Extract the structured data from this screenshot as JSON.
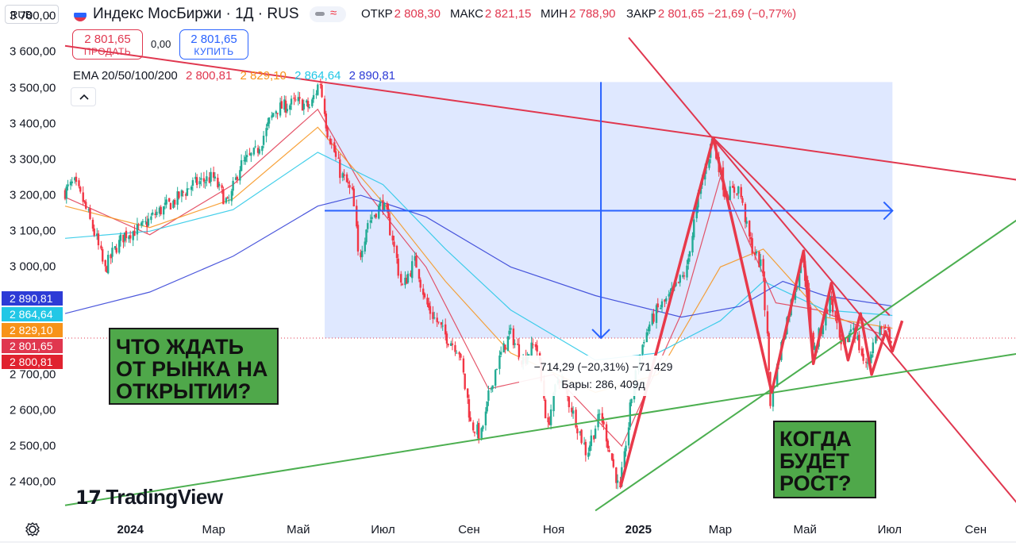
{
  "header": {
    "currency": "RUB",
    "title": "Индекс МосБиржи · 1Д · RUS",
    "ohlc": [
      {
        "key": "ОТКР",
        "value": "2 808,30"
      },
      {
        "key": "МАКС",
        "value": "2 821,15"
      },
      {
        "key": "МИН",
        "value": "2 788,90"
      },
      {
        "key": "ЗАКР",
        "value": "2 801,65 −21,69 (−0,77%)"
      }
    ],
    "sell_price": "2 801,65",
    "sell_label": "ПРОДАТЬ",
    "spread": "0,00",
    "buy_price": "2 801,65",
    "buy_label": "КУПИТЬ",
    "flag_colors": [
      "#ffffff",
      "#2962ff",
      "#e0374f"
    ]
  },
  "ema": {
    "label": "EMA 20/50/100/200",
    "values": [
      "2 800,81",
      "2 829,10",
      "2 864,64",
      "2 890,81"
    ],
    "colors": [
      "#e0374f",
      "#f7931a",
      "#22c7e6",
      "#2d3bd6"
    ]
  },
  "price_tags": [
    {
      "text": "2 890,81",
      "value": 2890.81,
      "color": "#2d3bd6"
    },
    {
      "text": "2 864,64",
      "value": 2864.64,
      "color": "#22c7e6"
    },
    {
      "text": "2 829,10",
      "value": 2829.1,
      "color": "#f7931a"
    },
    {
      "text": "2 801,65",
      "value": 2801.65,
      "color": "#e0374f"
    },
    {
      "text": "2 800,81",
      "value": 2800.81,
      "color": "#e0222f"
    }
  ],
  "callouts": {
    "left": [
      "ЧТО ЖДАТЬ",
      "ОТ РЫНКА НА",
      "ОТКРЫТИИ?"
    ],
    "right": [
      "КОГДА",
      "БУДЕТ",
      "РОСТ?"
    ]
  },
  "measure": {
    "line1": "−714,29 (−20,31%) −71 429",
    "line2": "Бары: 286, 409д"
  },
  "logo": "TradingView",
  "chart_data": {
    "type": "candlestick",
    "title": "Индекс МосБиржи · 1Д · RUS",
    "y_ticks": [
      "3 700,00",
      "3 600,00",
      "3 500,00",
      "3 400,00",
      "3 300,00",
      "3 200,00",
      "3 100,00",
      "3 000,00",
      "2 700,00",
      "2 600,00",
      "2 500,00",
      "2 400,00"
    ],
    "y_tick_values": [
      3700,
      3600,
      3500,
      3400,
      3300,
      3200,
      3100,
      3000,
      2700,
      2600,
      2500,
      2400
    ],
    "ylim": [
      2310,
      3745
    ],
    "x_ticks": [
      {
        "label": "2024",
        "date": "2024-01-01",
        "bold": true
      },
      {
        "label": "Мар",
        "date": "2024-03-01"
      },
      {
        "label": "Май",
        "date": "2024-05-01"
      },
      {
        "label": "Июл",
        "date": "2024-07-01"
      },
      {
        "label": "Сен",
        "date": "2024-09-01"
      },
      {
        "label": "Ноя",
        "date": "2024-11-01"
      },
      {
        "label": "2025",
        "date": "2025-01-01",
        "bold": true
      },
      {
        "label": "Мар",
        "date": "2025-03-01"
      },
      {
        "label": "Май",
        "date": "2025-05-01"
      },
      {
        "label": "Июл",
        "date": "2025-07-01"
      },
      {
        "label": "Сен",
        "date": "2025-09-01"
      }
    ],
    "xlim": [
      "2023-11-15",
      "2025-09-30"
    ],
    "last_close": 2801.65,
    "price_path": [
      [
        "2023-11-15",
        3210
      ],
      [
        "2023-11-22",
        3235
      ],
      [
        "2023-12-01",
        3160
      ],
      [
        "2023-12-08",
        3080
      ],
      [
        "2023-12-14",
        2990
      ],
      [
        "2023-12-20",
        3040
      ],
      [
        "2023-12-28",
        3090
      ],
      [
        "2024-01-10",
        3110
      ],
      [
        "2024-01-20",
        3150
      ],
      [
        "2024-02-01",
        3180
      ],
      [
        "2024-02-15",
        3230
      ],
      [
        "2024-03-01",
        3250
      ],
      [
        "2024-03-12",
        3170
      ],
      [
        "2024-03-20",
        3280
      ],
      [
        "2024-04-01",
        3320
      ],
      [
        "2024-04-15",
        3440
      ],
      [
        "2024-05-01",
        3460
      ],
      [
        "2024-05-10",
        3445
      ],
      [
        "2024-05-17",
        3520
      ],
      [
        "2024-05-22",
        3390
      ],
      [
        "2024-06-01",
        3260
      ],
      [
        "2024-06-10",
        3200
      ],
      [
        "2024-06-14",
        3020
      ],
      [
        "2024-06-20",
        3120
      ],
      [
        "2024-07-01",
        3180
      ],
      [
        "2024-07-08",
        3090
      ],
      [
        "2024-07-15",
        2940
      ],
      [
        "2024-07-25",
        3020
      ],
      [
        "2024-08-01",
        2900
      ],
      [
        "2024-08-15",
        2810
      ],
      [
        "2024-08-25",
        2770
      ],
      [
        "2024-09-03",
        2560
      ],
      [
        "2024-09-10",
        2530
      ],
      [
        "2024-09-20",
        2710
      ],
      [
        "2024-10-01",
        2820
      ],
      [
        "2024-10-10",
        2740
      ],
      [
        "2024-10-20",
        2790
      ],
      [
        "2024-10-28",
        2550
      ],
      [
        "2024-11-05",
        2700
      ],
      [
        "2024-11-15",
        2600
      ],
      [
        "2024-11-25",
        2480
      ],
      [
        "2024-12-05",
        2590
      ],
      [
        "2024-12-13",
        2470
      ],
      [
        "2024-12-19",
        2370
      ],
      [
        "2024-12-27",
        2620
      ],
      [
        "2025-01-05",
        2800
      ],
      [
        "2025-01-15",
        2880
      ],
      [
        "2025-01-25",
        2920
      ],
      [
        "2025-02-05",
        2990
      ],
      [
        "2025-02-15",
        3220
      ],
      [
        "2025-02-24",
        3360
      ],
      [
        "2025-03-05",
        3200
      ],
      [
        "2025-03-15",
        3220
      ],
      [
        "2025-03-22",
        3080
      ],
      [
        "2025-04-01",
        2990
      ],
      [
        "2025-04-07",
        2620
      ],
      [
        "2025-04-15",
        2800
      ],
      [
        "2025-04-30",
        3030
      ],
      [
        "2025-05-08",
        2760
      ],
      [
        "2025-05-20",
        2920
      ],
      [
        "2025-05-28",
        2760
      ],
      [
        "2025-06-05",
        2840
      ],
      [
        "2025-06-14",
        2720
      ],
      [
        "2025-06-24",
        2830
      ],
      [
        "2025-07-03",
        2801.65
      ]
    ],
    "ema_series": [
      {
        "name": "EMA 20",
        "points": [
          [
            "2023-11-15",
            3195
          ],
          [
            "2024-01-15",
            3090
          ],
          [
            "2024-03-15",
            3230
          ],
          [
            "2024-05-15",
            3440
          ],
          [
            "2024-06-15",
            3230
          ],
          [
            "2024-08-01",
            3000
          ],
          [
            "2024-09-15",
            2660
          ],
          [
            "2024-11-01",
            2700
          ],
          [
            "2024-12-20",
            2500
          ],
          [
            "2025-02-01",
            2870
          ],
          [
            "2025-03-01",
            3250
          ],
          [
            "2025-04-10",
            2900
          ],
          [
            "2025-05-10",
            2880
          ],
          [
            "2025-07-03",
            2800.81
          ]
        ]
      },
      {
        "name": "EMA 50",
        "points": [
          [
            "2023-11-15",
            3170
          ],
          [
            "2024-01-15",
            3110
          ],
          [
            "2024-03-15",
            3190
          ],
          [
            "2024-05-15",
            3390
          ],
          [
            "2024-07-01",
            3180
          ],
          [
            "2024-08-15",
            2960
          ],
          [
            "2024-10-01",
            2760
          ],
          [
            "2024-12-01",
            2650
          ],
          [
            "2025-01-15",
            2700
          ],
          [
            "2025-03-01",
            3000
          ],
          [
            "2025-04-01",
            3050
          ],
          [
            "2025-05-15",
            2860
          ],
          [
            "2025-07-03",
            2829.1
          ]
        ]
      },
      {
        "name": "EMA 100",
        "points": [
          [
            "2023-11-15",
            3080
          ],
          [
            "2024-01-15",
            3100
          ],
          [
            "2024-03-15",
            3160
          ],
          [
            "2024-05-15",
            3320
          ],
          [
            "2024-07-01",
            3230
          ],
          [
            "2024-08-15",
            3050
          ],
          [
            "2024-10-01",
            2880
          ],
          [
            "2024-12-01",
            2740
          ],
          [
            "2025-01-15",
            2760
          ],
          [
            "2025-03-01",
            2850
          ],
          [
            "2025-04-01",
            2960
          ],
          [
            "2025-05-15",
            2880
          ],
          [
            "2025-07-03",
            2864.64
          ]
        ]
      },
      {
        "name": "EMA 200",
        "points": [
          [
            "2023-11-15",
            2870
          ],
          [
            "2024-01-15",
            2930
          ],
          [
            "2024-03-15",
            3030
          ],
          [
            "2024-05-15",
            3170
          ],
          [
            "2024-06-15",
            3200
          ],
          [
            "2024-08-01",
            3140
          ],
          [
            "2024-10-01",
            3000
          ],
          [
            "2024-12-01",
            2920
          ],
          [
            "2025-02-01",
            2860
          ],
          [
            "2025-03-15",
            2890
          ],
          [
            "2025-04-15",
            2960
          ],
          [
            "2025-05-15",
            2920
          ],
          [
            "2025-07-03",
            2890.81
          ]
        ]
      }
    ],
    "drawings": {
      "shaded_range": {
        "x": [
          "2024-05-20",
          "2025-07-03"
        ],
        "y": [
          2801.65,
          3516
        ]
      },
      "measure_vertical": {
        "x": "2024-12-05",
        "y": [
          3516,
          2801.65
        ]
      },
      "measure_horizontal": {
        "x": [
          "2024-05-20",
          "2025-07-03"
        ],
        "y": 3157
      },
      "red_lines": [
        {
          "from": [
            "2023-11-15",
            3617
          ],
          "to": [
            "2025-10-01",
            3243
          ]
        },
        {
          "from": [
            "2024-12-25",
            3640
          ],
          "to": [
            "2025-10-01",
            2340
          ]
        },
        {
          "from": [
            "2025-02-24",
            3360
          ],
          "to": [
            "2025-07-01",
            2865
          ]
        }
      ],
      "green_lines": [
        {
          "from": [
            "2023-11-15",
            2335
          ],
          "to": [
            "2025-10-01",
            2758
          ]
        },
        {
          "from": [
            "2024-12-01",
            2320
          ],
          "to": [
            "2025-10-01",
            3132
          ]
        }
      ],
      "zigzag": [
        [
          "2024-12-19",
          2385
        ],
        [
          "2025-02-24",
          3360
        ],
        [
          "2025-04-07",
          2650
        ],
        [
          "2025-04-30",
          3045
        ],
        [
          "2025-05-07",
          2730
        ],
        [
          "2025-05-20",
          2955
        ],
        [
          "2025-06-01",
          2740
        ],
        [
          "2025-06-10",
          2870
        ],
        [
          "2025-06-18",
          2700
        ],
        [
          "2025-06-28",
          2820
        ],
        [
          "2025-07-03",
          2765
        ],
        [
          "2025-07-10",
          2850
        ]
      ]
    }
  }
}
